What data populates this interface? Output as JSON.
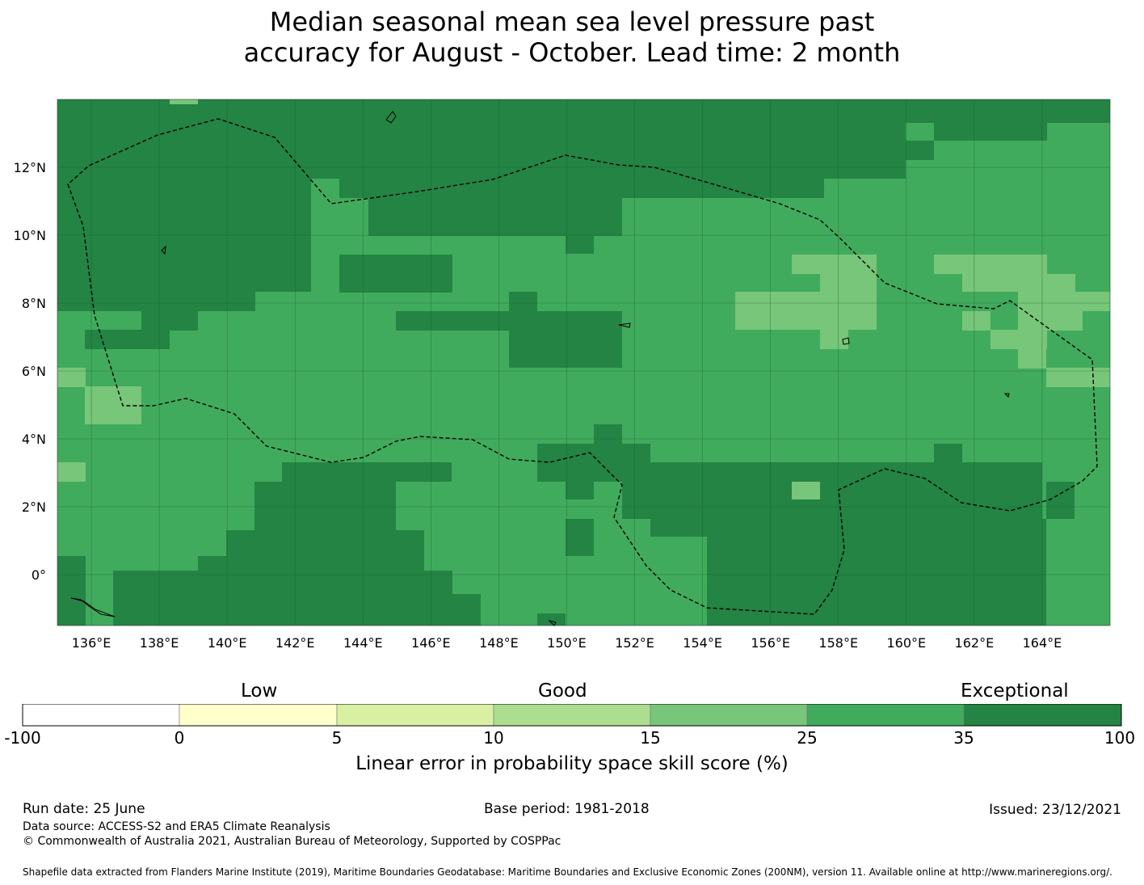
{
  "title": {
    "line1": "Median seasonal mean sea level pressure past",
    "line2": "accuracy for August - October. Lead time: 2 month"
  },
  "map": {
    "lon_range": [
      135,
      166
    ],
    "lat_range": [
      -1.5,
      14
    ],
    "lon_ticks": [
      "136°E",
      "138°E",
      "140°E",
      "142°E",
      "144°E",
      "146°E",
      "148°E",
      "150°E",
      "152°E",
      "154°E",
      "156°E",
      "158°E",
      "160°E",
      "162°E",
      "164°E"
    ],
    "lat_ticks": [
      "12°N",
      "10°N",
      "8°N",
      "6°N",
      "4°N",
      "2°N",
      "0°"
    ],
    "grid": true,
    "dominant_category": "25 to 35",
    "colors": {
      "c0": "#ffffcc",
      "c5": "#d9f0a3",
      "c10": "#addd8e",
      "c15": "#78c679",
      "c25": "#41ab5d",
      "c35": "#238443"
    }
  },
  "colorbar": {
    "categories": [
      "Low",
      "Good",
      "Exceptional"
    ],
    "ticks": [
      "-100",
      "0",
      "5",
      "10",
      "15",
      "25",
      "35",
      "100"
    ],
    "colors": [
      "#ffffff",
      "#ffffcc",
      "#d9f0a3",
      "#addd8e",
      "#78c679",
      "#41ab5d",
      "#238443"
    ],
    "title": "Linear error in probability space skill score (%)"
  },
  "footer": {
    "run_date": "Run date: 25 June",
    "base_period": "Base period: 1981-2018",
    "issued": "Issued: 23/12/2021",
    "data_source": "Data source: ACCESS-S2 and ERA5 Climate Reanalysis",
    "copyright": "© Commonwealth of Australia 2021, Australian Bureau of Meteorology, Supported by COSPPac",
    "shapefile": "Shapefile data extracted from Flanders Marine Institute (2019), Maritime Boundaries Geodatabase: Maritime Boundaries and Exclusive Economic Zones (200NM), version 11. Available online at http://www.marineregions.org/."
  }
}
